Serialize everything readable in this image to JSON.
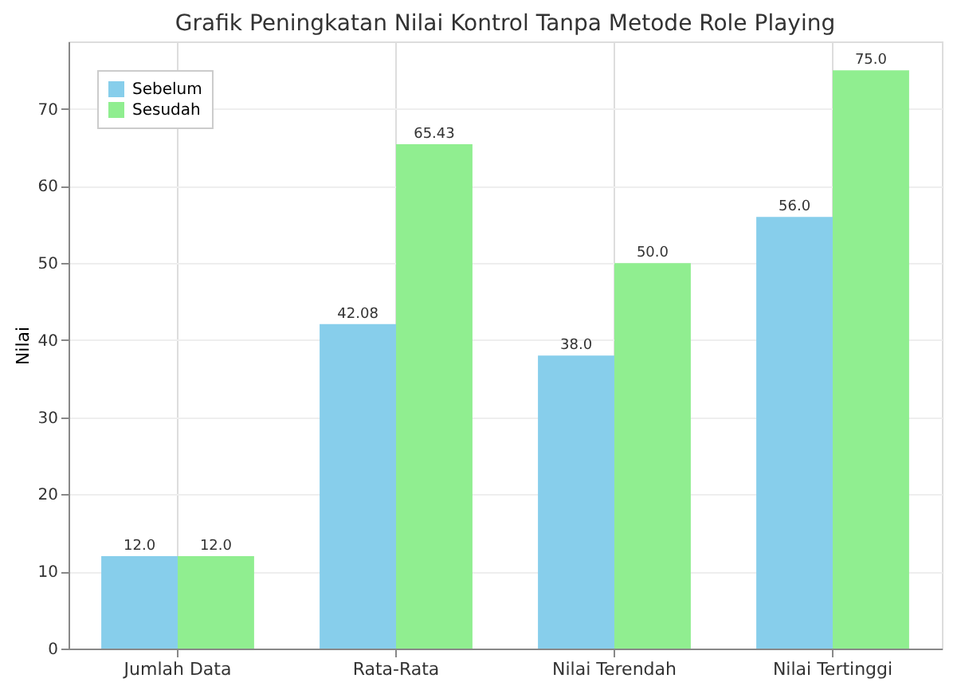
{
  "chart_data": {
    "type": "bar",
    "title": "Grafik Peningkatan Nilai Kontrol Tanpa Metode Role Playing",
    "ylabel": "Nilai",
    "categories": [
      "Jumlah Data",
      "Rata-Rata",
      "Nilai Terendah",
      "Nilai Tertinggi"
    ],
    "series": [
      {
        "name": "Sebelum",
        "color": "#87ceeb",
        "values": [
          12.0,
          42.08,
          38.0,
          56.0
        ],
        "value_labels": [
          "12.0",
          "42.08",
          "38.0",
          "56.0"
        ]
      },
      {
        "name": "Sesudah",
        "color": "#90ee90",
        "values": [
          12.0,
          65.43,
          50.0,
          75.0
        ],
        "value_labels": [
          "12.0",
          "65.43",
          "50.0",
          "75.0"
        ]
      }
    ],
    "ylim": [
      0,
      78.75
    ],
    "yticks": [
      0,
      10,
      20,
      30,
      40,
      50,
      60,
      70
    ],
    "grid": true,
    "legend": "top left"
  }
}
